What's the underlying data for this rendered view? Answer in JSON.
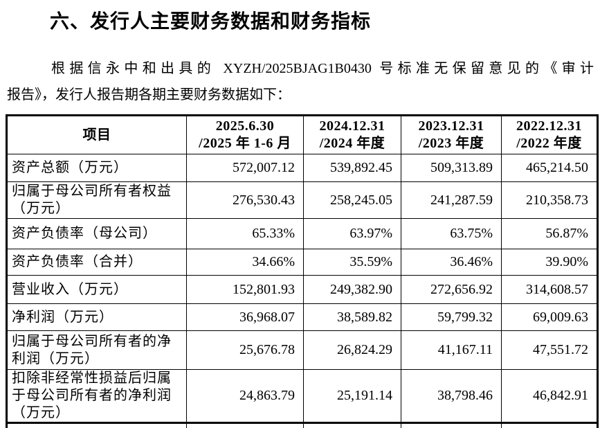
{
  "page": {
    "heading": "六、发行人主要财务数据和财务指标",
    "paragraph": {
      "line1": "根据信永中和出具的 XYZH/2025BJAG1B0430 号标准无保留意见的《审计",
      "line2": "报告》，发行人报告期各期主要财务数据如下："
    }
  },
  "table": {
    "item_header": "项目",
    "period_headers": [
      "2025.6.30\n/2025 年 1-6 月",
      "2024.12.31\n/2024 年度",
      "2023.12.31\n/2023 年度",
      "2022.12.31\n/2022 年度"
    ],
    "rows": [
      {
        "label": "资产总额（万元）",
        "values": [
          "572,007.12",
          "539,892.45",
          "509,313.89",
          "465,214.50"
        ]
      },
      {
        "label": "归属于母公司所有者权益（万元）",
        "values": [
          "276,530.43",
          "258,245.05",
          "241,287.59",
          "210,358.73"
        ]
      },
      {
        "label": "资产负债率（母公司）",
        "values": [
          "65.33%",
          "63.97%",
          "63.75%",
          "56.87%"
        ]
      },
      {
        "label": "资产负债率（合并）",
        "values": [
          "34.66%",
          "35.59%",
          "36.46%",
          "39.90%"
        ]
      },
      {
        "label": "营业收入（万元）",
        "values": [
          "152,801.93",
          "249,382.90",
          "272,656.92",
          "314,608.57"
        ]
      },
      {
        "label": "净利润（万元）",
        "values": [
          "36,968.07",
          "38,589.82",
          "59,799.32",
          "69,009.63"
        ]
      },
      {
        "label": "归属于母公司所有者的净利润（万元）",
        "values": [
          "25,676.78",
          "26,824.29",
          "41,167.11",
          "47,551.72"
        ]
      },
      {
        "label": "扣除非经常性损益后归属于母公司所有者的净利润（万元）",
        "values": [
          "24,863.79",
          "25,191.14",
          "38,798.46",
          "46,842.91"
        ]
      }
    ]
  }
}
